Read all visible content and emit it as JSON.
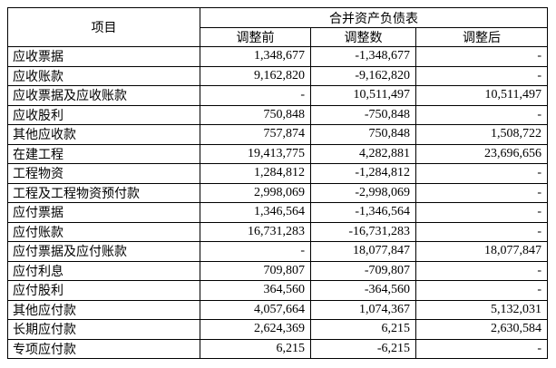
{
  "colors": {
    "text": "#000000",
    "border": "#000000",
    "background": "#ffffff"
  },
  "table": {
    "item_header": "项目",
    "group_header": "合并资产负债表",
    "columns": [
      "调整前",
      "调整数",
      "调整后"
    ],
    "rows": [
      {
        "item": "应收票据",
        "before": "1,348,677",
        "adjustment": "-1,348,677",
        "after": "-"
      },
      {
        "item": "应收账款",
        "before": "9,162,820",
        "adjustment": "-9,162,820",
        "after": "-"
      },
      {
        "item": "应收票据及应收账款",
        "before": "-",
        "adjustment": "10,511,497",
        "after": "10,511,497"
      },
      {
        "item": "应收股利",
        "before": "750,848",
        "adjustment": "-750,848",
        "after": "-"
      },
      {
        "item": "其他应收款",
        "before": "757,874",
        "adjustment": "750,848",
        "after": "1,508,722"
      },
      {
        "item": "在建工程",
        "before": "19,413,775",
        "adjustment": "4,282,881",
        "after": "23,696,656"
      },
      {
        "item": "工程物资",
        "before": "1,284,812",
        "adjustment": "-1,284,812",
        "after": "-"
      },
      {
        "item": "工程及工程物资预付款",
        "before": "2,998,069",
        "adjustment": "-2,998,069",
        "after": "-"
      },
      {
        "item": "应付票据",
        "before": "1,346,564",
        "adjustment": "-1,346,564",
        "after": "-"
      },
      {
        "item": "应付账款",
        "before": "16,731,283",
        "adjustment": "-16,731,283",
        "after": "-"
      },
      {
        "item": "应付票据及应付账款",
        "before": "-",
        "adjustment": "18,077,847",
        "after": "18,077,847"
      },
      {
        "item": "应付利息",
        "before": "709,807",
        "adjustment": "-709,807",
        "after": "-"
      },
      {
        "item": "应付股利",
        "before": "364,560",
        "adjustment": "-364,560",
        "after": "-"
      },
      {
        "item": "其他应付款",
        "before": "4,057,664",
        "adjustment": "1,074,367",
        "after": "5,132,031"
      },
      {
        "item": "长期应付款",
        "before": "2,624,369",
        "adjustment": "6,215",
        "after": "2,630,584"
      },
      {
        "item": "专项应付款",
        "before": "6,215",
        "adjustment": "-6,215",
        "after": "-"
      }
    ]
  }
}
